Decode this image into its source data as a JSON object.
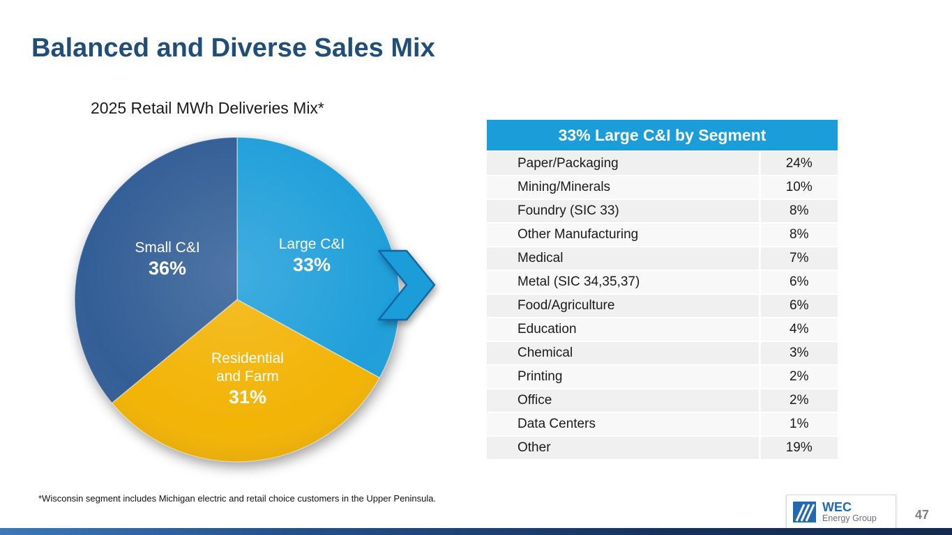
{
  "colors": {
    "title_blue": "#1F4E79",
    "accent_blue": "#1B9DD9",
    "dark_blue": "#2E5B94",
    "gold": "#F2B200",
    "arrow_stroke": "#1366A5",
    "logo_blue": "#2169B0",
    "logo_gray": "#6D6E71"
  },
  "slide": {
    "title": "Balanced and Diverse Sales Mix",
    "footnote": "*Wisconsin segment includes Michigan electric and retail choice customers in the Upper Peninsula.",
    "page_number": "47",
    "logo": {
      "name": "WEC",
      "suffix": "Energy Group"
    }
  },
  "chart_data": [
    {
      "type": "pie",
      "title": "2025 Retail MWh Deliveries Mix*",
      "direction": "clockwise",
      "start_angle_deg": 0,
      "slices": [
        {
          "label": "Large C&I",
          "value": 33,
          "display": "33%",
          "color": "#1B9DD9"
        },
        {
          "label": "Residential and Farm",
          "value": 31,
          "display": "31%",
          "color": "#F2B200"
        },
        {
          "label": "Small C&I",
          "value": 36,
          "display": "36%",
          "color": "#2E5B94"
        }
      ],
      "callout": "right-arrow-from-large-ci-slice"
    },
    {
      "type": "table",
      "title": "33% Large C&I by Segment",
      "rows": [
        [
          "Paper/Packaging",
          "24%"
        ],
        [
          "Mining/Minerals",
          "10%"
        ],
        [
          "Foundry (SIC 33)",
          "8%"
        ],
        [
          "Other Manufacturing",
          "8%"
        ],
        [
          "Medical",
          "7%"
        ],
        [
          "Metal (SIC 34,35,37)",
          "6%"
        ],
        [
          "Food/Agriculture",
          "6%"
        ],
        [
          "Education",
          "4%"
        ],
        [
          "Chemical",
          "3%"
        ],
        [
          "Printing",
          "2%"
        ],
        [
          "Office",
          "2%"
        ],
        [
          "Data Centers",
          "1%"
        ],
        [
          "Other",
          "19%"
        ]
      ]
    }
  ]
}
